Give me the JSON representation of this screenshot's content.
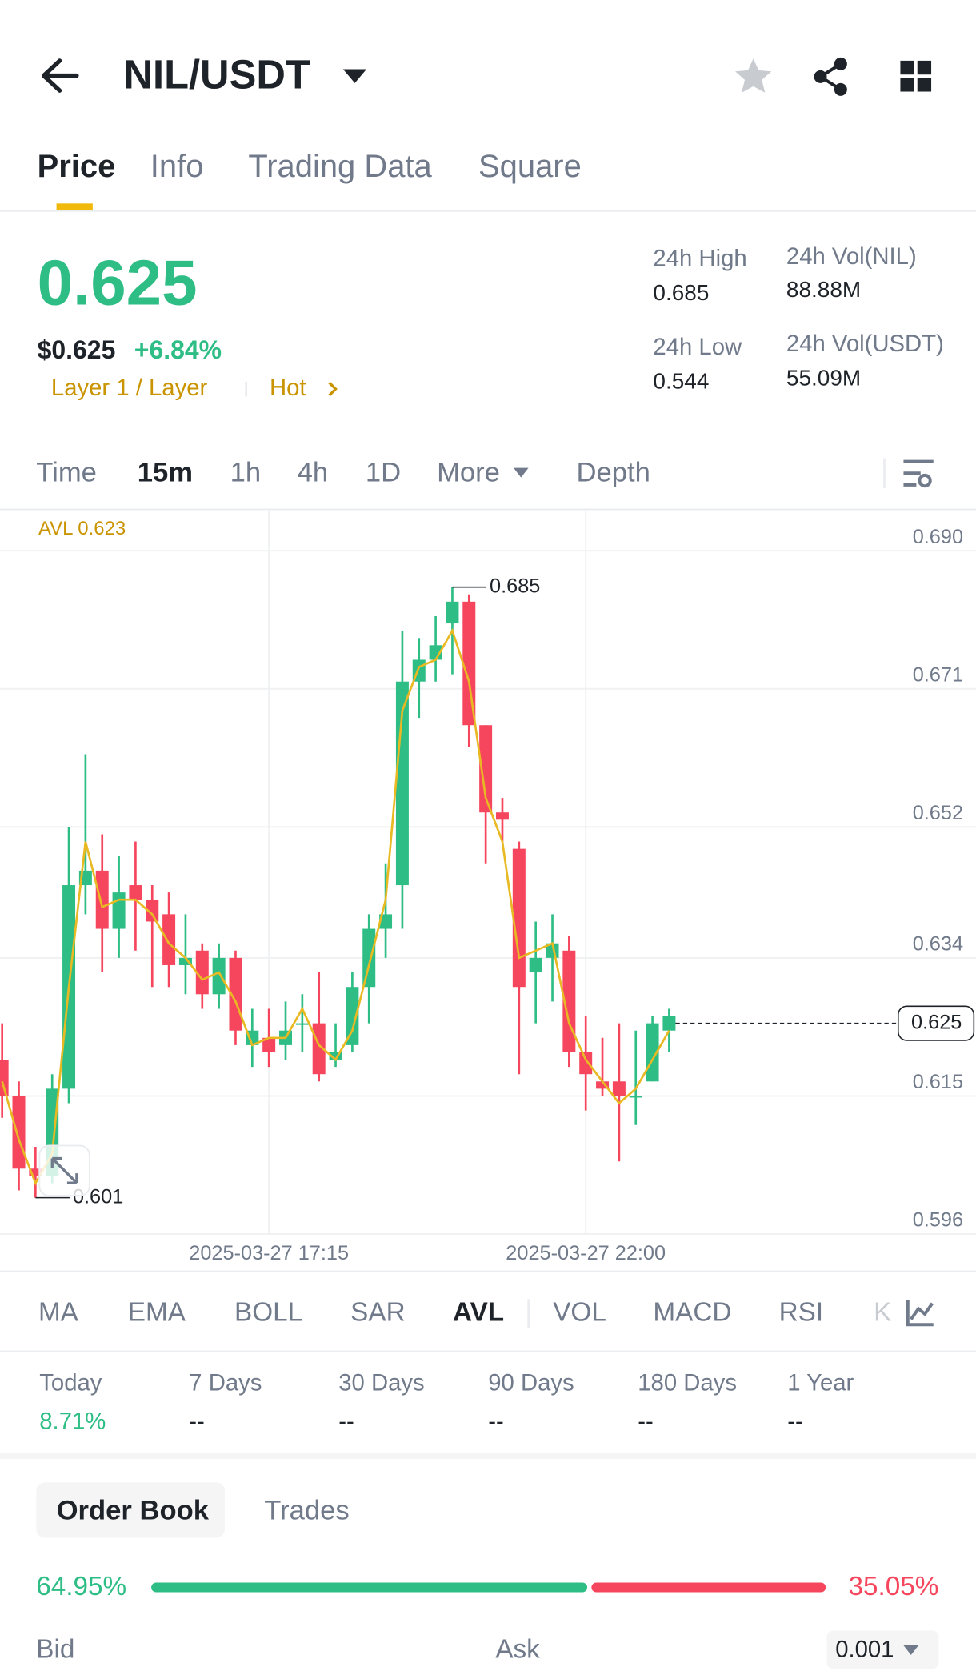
{
  "header": {
    "title": "NIL/USDT"
  },
  "tabs": [
    "Price",
    "Info",
    "Trading Data",
    "Square"
  ],
  "price": {
    "last": "0.625",
    "usd": "$0.625",
    "change": "+6.84%",
    "tag": "Layer 1 / Layer",
    "hot": "Hot"
  },
  "stats": [
    {
      "label": "24h High",
      "value": "0.685"
    },
    {
      "label": "24h Vol(NIL)",
      "value": "88.88M"
    },
    {
      "label": "24h Low",
      "value": "0.544"
    },
    {
      "label": "24h Vol(USDT)",
      "value": "55.09M"
    }
  ],
  "intervals": [
    "Time",
    "15m",
    "1h",
    "4h",
    "1D",
    "More",
    "Depth"
  ],
  "chart_data": {
    "type": "candlestick",
    "categories": [
      null,
      null,
      null,
      null,
      null,
      null,
      null,
      null,
      null,
      null,
      null,
      null,
      null,
      null,
      null,
      null,
      "2025-03-27 17:15",
      null,
      null,
      null,
      null,
      null,
      null,
      null,
      null,
      null,
      null,
      null,
      null,
      null,
      null,
      null,
      null,
      null,
      null,
      "2025-03-27 22:00",
      null,
      null,
      null,
      null,
      null
    ],
    "open": [
      0.62,
      0.615,
      0.605,
      0.604,
      0.616,
      0.644,
      0.646,
      0.638,
      0.644,
      0.642,
      0.64,
      0.633,
      0.635,
      0.629,
      0.634,
      0.622,
      0.623,
      0.622,
      0.625,
      0.625,
      0.62,
      0.622,
      0.63,
      0.638,
      0.644,
      0.672,
      0.675,
      0.68,
      0.683,
      0.666,
      0.654,
      0.649,
      0.632,
      0.634,
      0.635,
      0.621,
      0.617,
      0.617,
      0.615,
      0.617,
      0.624
    ],
    "high": [
      0.625,
      0.617,
      0.608,
      0.618,
      0.652,
      0.662,
      0.651,
      0.648,
      0.65,
      0.644,
      0.643,
      0.64,
      0.636,
      0.636,
      0.635,
      0.627,
      0.627,
      0.628,
      0.629,
      0.632,
      0.625,
      0.632,
      0.64,
      0.647,
      0.679,
      0.678,
      0.681,
      0.685,
      0.684,
      0.666,
      0.656,
      0.65,
      0.639,
      0.64,
      0.637,
      0.626,
      0.623,
      0.625,
      0.624,
      0.626,
      0.627
    ],
    "low": [
      0.612,
      0.602,
      0.601,
      0.603,
      0.614,
      0.64,
      0.632,
      0.634,
      0.635,
      0.63,
      0.63,
      0.629,
      0.627,
      0.627,
      0.622,
      0.619,
      0.619,
      0.62,
      0.621,
      0.617,
      0.619,
      0.621,
      0.625,
      0.634,
      0.638,
      0.667,
      0.672,
      0.673,
      0.663,
      0.647,
      0.65,
      0.618,
      0.625,
      0.628,
      0.619,
      0.613,
      0.615,
      0.606,
      0.611,
      0.617,
      0.621
    ],
    "close": [
      0.615,
      0.605,
      0.604,
      0.616,
      0.644,
      0.646,
      0.638,
      0.643,
      0.642,
      0.639,
      0.633,
      0.634,
      0.629,
      0.634,
      0.624,
      0.624,
      0.621,
      0.624,
      0.625,
      0.618,
      0.621,
      0.63,
      0.638,
      0.64,
      0.672,
      0.675,
      0.677,
      0.683,
      0.666,
      0.654,
      0.653,
      0.63,
      0.634,
      0.636,
      0.621,
      0.618,
      0.616,
      0.615,
      0.615,
      0.625,
      0.626
    ],
    "colors": {
      "up": "#2ebd85",
      "down": "#f6465d"
    },
    "avl_label": "AVL 0.623",
    "avl": {
      "color": "#e8b923",
      "values": [
        0.617,
        0.609,
        0.603,
        0.607,
        0.63,
        0.65,
        0.641,
        0.642,
        0.642,
        0.64,
        0.636,
        0.634,
        0.631,
        0.632,
        0.628,
        0.622,
        0.623,
        0.623,
        0.627,
        0.622,
        0.62,
        0.624,
        0.633,
        0.642,
        0.668,
        0.674,
        0.675,
        0.679,
        0.672,
        0.656,
        0.65,
        0.634,
        0.635,
        0.636,
        0.625,
        0.62,
        0.617,
        0.614,
        0.616,
        0.62,
        0.624
      ]
    },
    "ylim": [
      0.596,
      0.6954
    ],
    "yticks": [
      {
        "value": 0.69,
        "label": "0.690"
      },
      0.671,
      0.652,
      0.634,
      0.615,
      0.596
    ],
    "grid": true,
    "high_marker": 0.685,
    "low_marker": 0.601,
    "last_price": 0.625
  },
  "indicators": [
    "MA",
    "EMA",
    "BOLL",
    "SAR",
    "AVL",
    "VOL",
    "MACD",
    "RSI",
    "K"
  ],
  "performance": [
    {
      "label": "Today",
      "value": "8.71%"
    },
    {
      "label": "7 Days",
      "value": "--"
    },
    {
      "label": "30 Days",
      "value": "--"
    },
    {
      "label": "90 Days",
      "value": "--"
    },
    {
      "label": "180 Days",
      "value": "--"
    },
    {
      "label": "1 Year",
      "value": "--"
    }
  ],
  "order_book": {
    "tabs": [
      "Order Book",
      "Trades"
    ],
    "bid": {
      "value": 64.95,
      "label": "64.95%"
    },
    "ask": {
      "value": 35.05,
      "label": "35.05%"
    },
    "columns": [
      "Bid",
      "Ask"
    ],
    "precision": "0.001"
  }
}
